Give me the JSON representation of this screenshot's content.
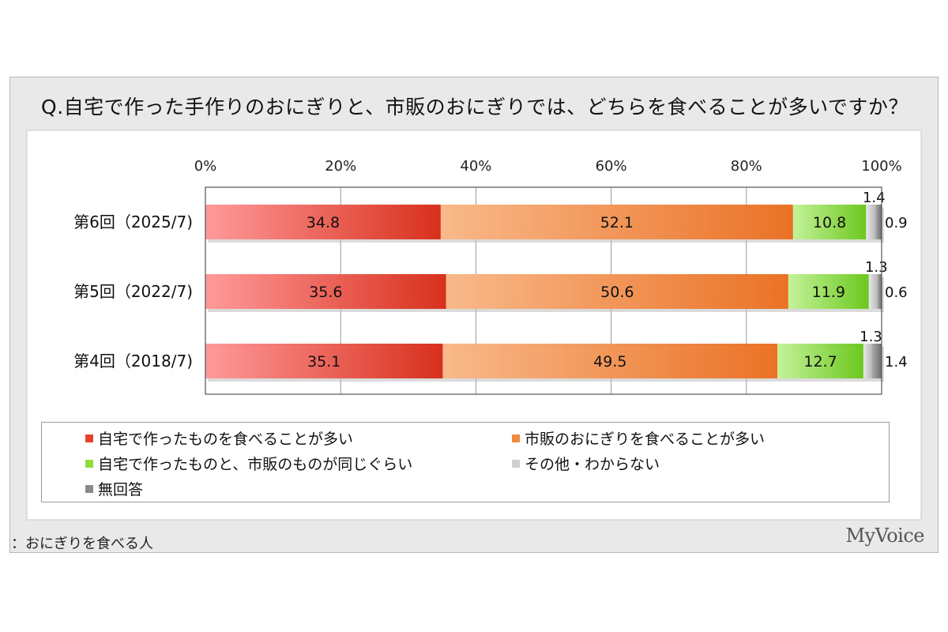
{
  "title": "Q.自宅で作った手作りのおにぎりと、市販のおにぎりでは、どちらを食べることが多いですか？",
  "footnote": "：おにぎりを食べる人",
  "brand": "MyVoice",
  "colors": {
    "home": "#e8412b",
    "store": "#f08a3e",
    "same": "#8fdc3a",
    "other": "#cfcfcf",
    "noanswer": "#8a8a8a"
  },
  "chart_data": {
    "type": "bar",
    "orientation": "horizontal",
    "stacked": true,
    "percent": true,
    "categories": [
      "第6回（2025/7)",
      "第5回（2022/7)",
      "第4回（2018/7)"
    ],
    "xlim": [
      0,
      100
    ],
    "x_ticks": [
      "0%",
      "20%",
      "40%",
      "60%",
      "80%",
      "100%"
    ],
    "series": [
      {
        "name": "自宅で作ったものを食べることが多い",
        "values": [
          34.8,
          35.6,
          35.1
        ]
      },
      {
        "name": "市販のおにぎりを食べることが多い",
        "values": [
          52.1,
          50.6,
          49.5
        ]
      },
      {
        "name": "自宅で作ったものと、市販のものが同じぐらい",
        "values": [
          10.8,
          11.9,
          12.7
        ]
      },
      {
        "name": "その他・わからない",
        "values": [
          1.4,
          1.3,
          1.3
        ]
      },
      {
        "name": "無回答",
        "values": [
          0.9,
          0.6,
          1.4
        ]
      }
    ],
    "data_labels": [
      [
        "34.8",
        "52.1",
        "10.8",
        "1.4",
        "0.9"
      ],
      [
        "35.6",
        "50.6",
        "11.9",
        "1.3",
        "0.6"
      ],
      [
        "35.1",
        "49.5",
        "12.7",
        "1.3",
        "1.4"
      ]
    ],
    "grid": true,
    "legend_position": "bottom"
  }
}
